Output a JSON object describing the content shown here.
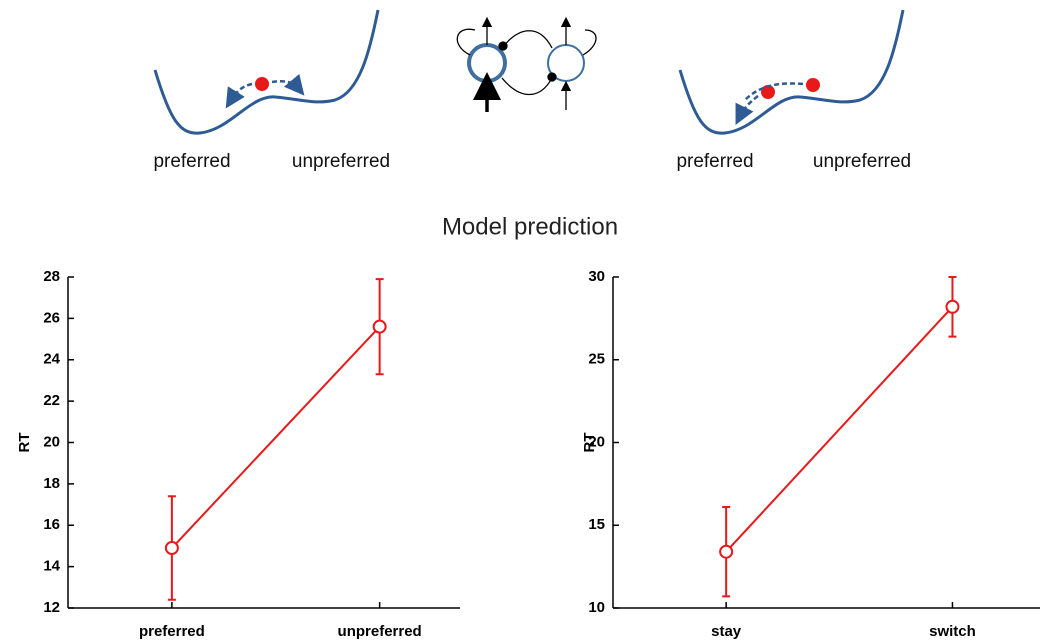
{
  "diagrams": [
    {
      "labels": [
        "preferred",
        "unpreferred"
      ]
    },
    {
      "labels": [
        "preferred",
        "unpreferred"
      ]
    }
  ],
  "heading": "Model prediction",
  "chart_data": [
    {
      "type": "line",
      "ylabel": "RT",
      "categories": [
        "preferred",
        "unpreferred"
      ],
      "values": [
        14.9,
        25.6
      ],
      "error": [
        2.5,
        2.3
      ],
      "color": "#e8191b",
      "ylim": [
        12,
        28
      ],
      "yticks": [
        12,
        14,
        16,
        18,
        20,
        22,
        24,
        26,
        28
      ]
    },
    {
      "type": "line",
      "ylabel": "RT",
      "categories": [
        "stay",
        "switch"
      ],
      "values": [
        13.4,
        28.2
      ],
      "error": [
        2.7,
        1.8
      ],
      "color": "#e8191b",
      "ylim": [
        10,
        30
      ],
      "yticks": [
        10,
        15,
        20,
        25,
        30
      ]
    }
  ]
}
